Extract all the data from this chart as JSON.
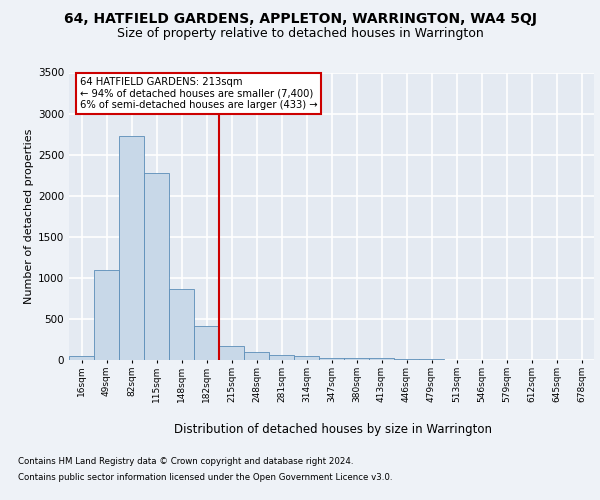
{
  "title1": "64, HATFIELD GARDENS, APPLETON, WARRINGTON, WA4 5QJ",
  "title2": "Size of property relative to detached houses in Warrington",
  "xlabel": "Distribution of detached houses by size in Warrington",
  "ylabel": "Number of detached properties",
  "categories": [
    "16sqm",
    "49sqm",
    "82sqm",
    "115sqm",
    "148sqm",
    "182sqm",
    "215sqm",
    "248sqm",
    "281sqm",
    "314sqm",
    "347sqm",
    "380sqm",
    "413sqm",
    "446sqm",
    "479sqm",
    "513sqm",
    "546sqm",
    "579sqm",
    "612sqm",
    "645sqm",
    "678sqm"
  ],
  "values": [
    50,
    1100,
    2730,
    2280,
    870,
    420,
    175,
    100,
    65,
    50,
    30,
    30,
    25,
    10,
    10,
    5,
    5,
    3,
    3,
    2,
    2
  ],
  "bar_color": "#c8d8e8",
  "bar_edge_color": "#5b8db8",
  "vline_color": "#cc0000",
  "vline_idx": 6,
  "annotation_text": "64 HATFIELD GARDENS: 213sqm\n← 94% of detached houses are smaller (7,400)\n6% of semi-detached houses are larger (433) →",
  "annotation_box_color": "#ffffff",
  "annotation_box_edge": "#cc0000",
  "ylim": [
    0,
    3500
  ],
  "yticks": [
    0,
    500,
    1000,
    1500,
    2000,
    2500,
    3000,
    3500
  ],
  "footer1": "Contains HM Land Registry data © Crown copyright and database right 2024.",
  "footer2": "Contains public sector information licensed under the Open Government Licence v3.0.",
  "bg_color": "#eef2f7",
  "plot_bg_color": "#e4eaf2",
  "grid_color": "#ffffff",
  "title1_fontsize": 10,
  "title2_fontsize": 9,
  "xlabel_fontsize": 8.5,
  "ylabel_fontsize": 8
}
